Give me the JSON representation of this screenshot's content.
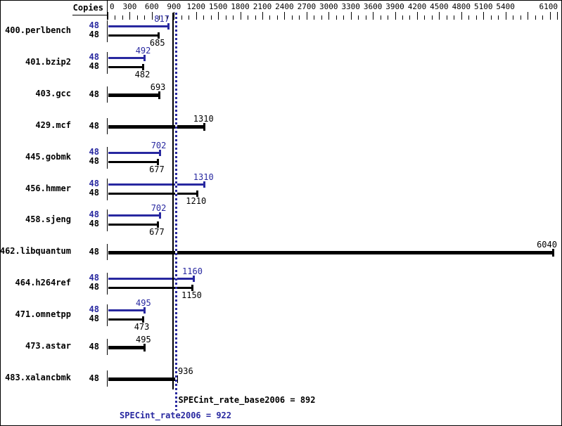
{
  "header": {
    "copies_label": "Copies"
  },
  "chart_data": {
    "type": "bar",
    "orientation": "horizontal",
    "title": "",
    "xlabel": "",
    "ylabel": "",
    "legend_position": "none",
    "grid": false,
    "axis": {
      "min": 0,
      "max": 6100,
      "minor_tick_step": 100,
      "major_tick_step": 300,
      "labeled_ticks": [
        0,
        300,
        600,
        900,
        1200,
        1500,
        1800,
        2100,
        2400,
        2700,
        3000,
        3300,
        3600,
        3900,
        4200,
        4500,
        4800,
        5100,
        5400,
        6100
      ]
    },
    "series": [
      {
        "name": "peak",
        "color": "#2828a0"
      },
      {
        "name": "base",
        "color": "#000000"
      }
    ],
    "benchmarks": [
      {
        "name": "400.perlbench",
        "copies": 48,
        "peak": 817,
        "base": 685
      },
      {
        "name": "401.bzip2",
        "copies": 48,
        "peak": 492,
        "base": 482
      },
      {
        "name": "403.gcc",
        "copies": 48,
        "peak": null,
        "base": 693
      },
      {
        "name": "429.mcf",
        "copies": 48,
        "peak": null,
        "base": 1310
      },
      {
        "name": "445.gobmk",
        "copies": 48,
        "peak": 702,
        "base": 677
      },
      {
        "name": "456.hmmer",
        "copies": 48,
        "peak": 1310,
        "base": 1210
      },
      {
        "name": "458.sjeng",
        "copies": 48,
        "peak": 702,
        "base": 677
      },
      {
        "name": "462.libquantum",
        "copies": 48,
        "peak": null,
        "base": 6040
      },
      {
        "name": "464.h264ref",
        "copies": 48,
        "peak": 1160,
        "base": 1150
      },
      {
        "name": "471.omnetpp",
        "copies": 48,
        "peak": 495,
        "base": 473
      },
      {
        "name": "473.astar",
        "copies": 48,
        "peak": null,
        "base": 495
      },
      {
        "name": "483.xalancbmk",
        "copies": 48,
        "peak": null,
        "base": 936
      }
    ],
    "summary": {
      "base_label": "SPECint_rate_base2006",
      "base_value": 892,
      "peak_label": "SPECint_rate2006",
      "peak_value": 922
    },
    "colors": {
      "peak_blue": "#2828a0",
      "base_black": "#000000"
    }
  }
}
